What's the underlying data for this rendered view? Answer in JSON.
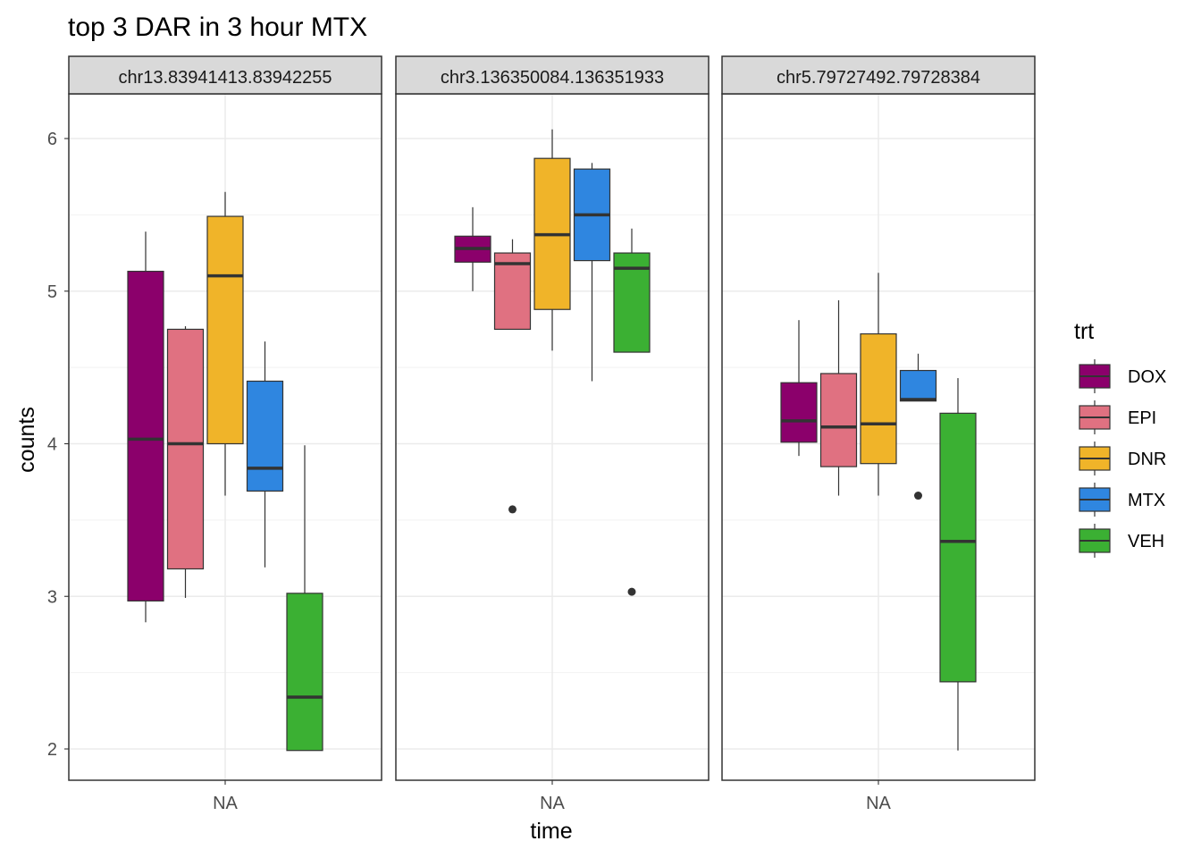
{
  "chart_data": {
    "type": "boxplot",
    "title": "top 3 DAR in 3 hour MTX",
    "xlabel": "time",
    "ylabel": "counts",
    "x_tick_label": "NA",
    "ylim": [
      1.8,
      6.3
    ],
    "y_ticks": [
      2,
      3,
      4,
      5,
      6
    ],
    "grid": true,
    "legend": {
      "title": "trt",
      "position": "right",
      "entries": [
        "DOX",
        "EPI",
        "DNR",
        "MTX",
        "VEH"
      ]
    },
    "colors": {
      "DOX": "#8B006B",
      "EPI": "#E07181",
      "DNR": "#F0B429",
      "MTX": "#2F86E0",
      "VEH": "#3BB033"
    },
    "panels": [
      {
        "label": "chr13.83941413.83942255",
        "boxes": [
          {
            "trt": "DOX",
            "min": 2.83,
            "q1": 2.97,
            "median": 4.03,
            "q3": 5.13,
            "max": 5.39,
            "outliers": []
          },
          {
            "trt": "EPI",
            "min": 2.99,
            "q1": 3.18,
            "median": 4.0,
            "q3": 4.75,
            "max": 4.77,
            "outliers": []
          },
          {
            "trt": "DNR",
            "min": 3.66,
            "q1": 4.0,
            "median": 5.1,
            "q3": 5.49,
            "max": 5.65,
            "outliers": []
          },
          {
            "trt": "MTX",
            "min": 3.19,
            "q1": 3.69,
            "median": 3.84,
            "q3": 4.41,
            "max": 4.67,
            "outliers": []
          },
          {
            "trt": "VEH",
            "min": 1.99,
            "q1": 1.99,
            "median": 2.34,
            "q3": 3.02,
            "max": 3.99,
            "outliers": []
          }
        ]
      },
      {
        "label": "chr3.136350084.136351933",
        "boxes": [
          {
            "trt": "DOX",
            "min": 5.0,
            "q1": 5.19,
            "median": 5.28,
            "q3": 5.36,
            "max": 5.55,
            "outliers": []
          },
          {
            "trt": "EPI",
            "min": 4.75,
            "q1": 4.75,
            "median": 5.18,
            "q3": 5.25,
            "max": 5.34,
            "outliers": [
              3.57
            ]
          },
          {
            "trt": "DNR",
            "min": 4.61,
            "q1": 4.88,
            "median": 5.37,
            "q3": 5.87,
            "max": 6.06,
            "outliers": []
          },
          {
            "trt": "MTX",
            "min": 4.41,
            "q1": 5.2,
            "median": 5.5,
            "q3": 5.8,
            "max": 5.84,
            "outliers": []
          },
          {
            "trt": "VEH",
            "min": 4.6,
            "q1": 4.6,
            "median": 5.15,
            "q3": 5.25,
            "max": 5.41,
            "outliers": [
              3.03
            ]
          }
        ]
      },
      {
        "label": "chr5.79727492.79728384",
        "boxes": [
          {
            "trt": "DOX",
            "min": 3.92,
            "q1": 4.01,
            "median": 4.15,
            "q3": 4.4,
            "max": 4.81,
            "outliers": []
          },
          {
            "trt": "EPI",
            "min": 3.66,
            "q1": 3.85,
            "median": 4.11,
            "q3": 4.46,
            "max": 4.94,
            "outliers": []
          },
          {
            "trt": "DNR",
            "min": 3.66,
            "q1": 3.87,
            "median": 4.13,
            "q3": 4.72,
            "max": 5.12,
            "outliers": []
          },
          {
            "trt": "MTX",
            "min": 4.28,
            "q1": 4.28,
            "median": 4.29,
            "q3": 4.48,
            "max": 4.59,
            "outliers": [
              3.66
            ]
          },
          {
            "trt": "VEH",
            "min": 1.99,
            "q1": 2.44,
            "median": 3.36,
            "q3": 4.2,
            "max": 4.43,
            "outliers": []
          }
        ]
      }
    ]
  }
}
